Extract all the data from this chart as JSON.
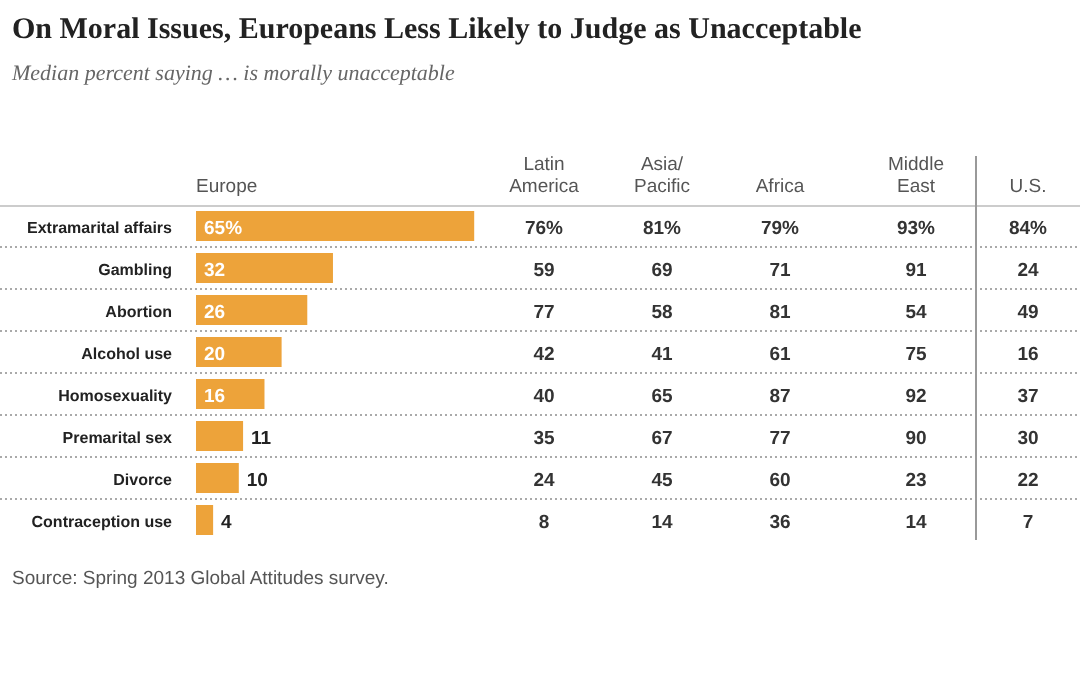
{
  "chart_data": [
    {
      "type": "bar",
      "orientation": "horizontal",
      "title": "On Moral Issues, Europeans Less Likely to Judge as Unacceptable",
      "subtitle": "Median percent saying … is morally unacceptable",
      "categories": [
        "Extramarital affairs",
        "Gambling",
        "Abortion",
        "Alcohol use",
        "Homosexuality",
        "Premarital sex",
        "Divorce",
        "Contraception use"
      ],
      "series": [
        {
          "name": "Europe",
          "type": "bar",
          "color": "#eda33a",
          "values": [
            65,
            32,
            26,
            20,
            16,
            11,
            10,
            4
          ],
          "value_labels": [
            "65%",
            "32",
            "26",
            "20",
            "16",
            "11",
            "10",
            "4"
          ]
        }
      ],
      "annotations": [
        "Source: Spring 2013 Global Attitudes survey."
      ]
    },
    {
      "type": "heatmap",
      "categories": [
        "Latin America",
        "Asia/Pacific",
        "Africa",
        "Middle East",
        "U.S."
      ],
      "y_categories": [
        null,
        null,
        null,
        null,
        null,
        null,
        null,
        null
      ],
      "cells": [
        [
          76,
          81,
          79,
          93,
          84
        ],
        [
          59,
          69,
          71,
          91,
          24
        ],
        [
          77,
          58,
          81,
          54,
          49
        ],
        [
          42,
          41,
          61,
          75,
          16
        ],
        [
          40,
          65,
          87,
          92,
          37
        ],
        [
          35,
          67,
          77,
          90,
          30
        ],
        [
          24,
          45,
          60,
          23,
          22
        ],
        [
          8,
          14,
          36,
          14,
          7
        ]
      ],
      "cell_labels": [
        [
          "76%",
          "81%",
          "79%",
          "93%",
          "84%"
        ],
        [
          "59",
          "69",
          "71",
          "91",
          "24"
        ],
        [
          "77",
          "58",
          "81",
          "54",
          "49"
        ],
        [
          "42",
          "41",
          "61",
          "75",
          "16"
        ],
        [
          "40",
          "65",
          "87",
          "92",
          "37"
        ],
        [
          "35",
          "67",
          "77",
          "90",
          "30"
        ],
        [
          "24",
          "45",
          "60",
          "23",
          "22"
        ],
        [
          "8",
          "14",
          "36",
          "14",
          "7"
        ]
      ]
    }
  ]
}
